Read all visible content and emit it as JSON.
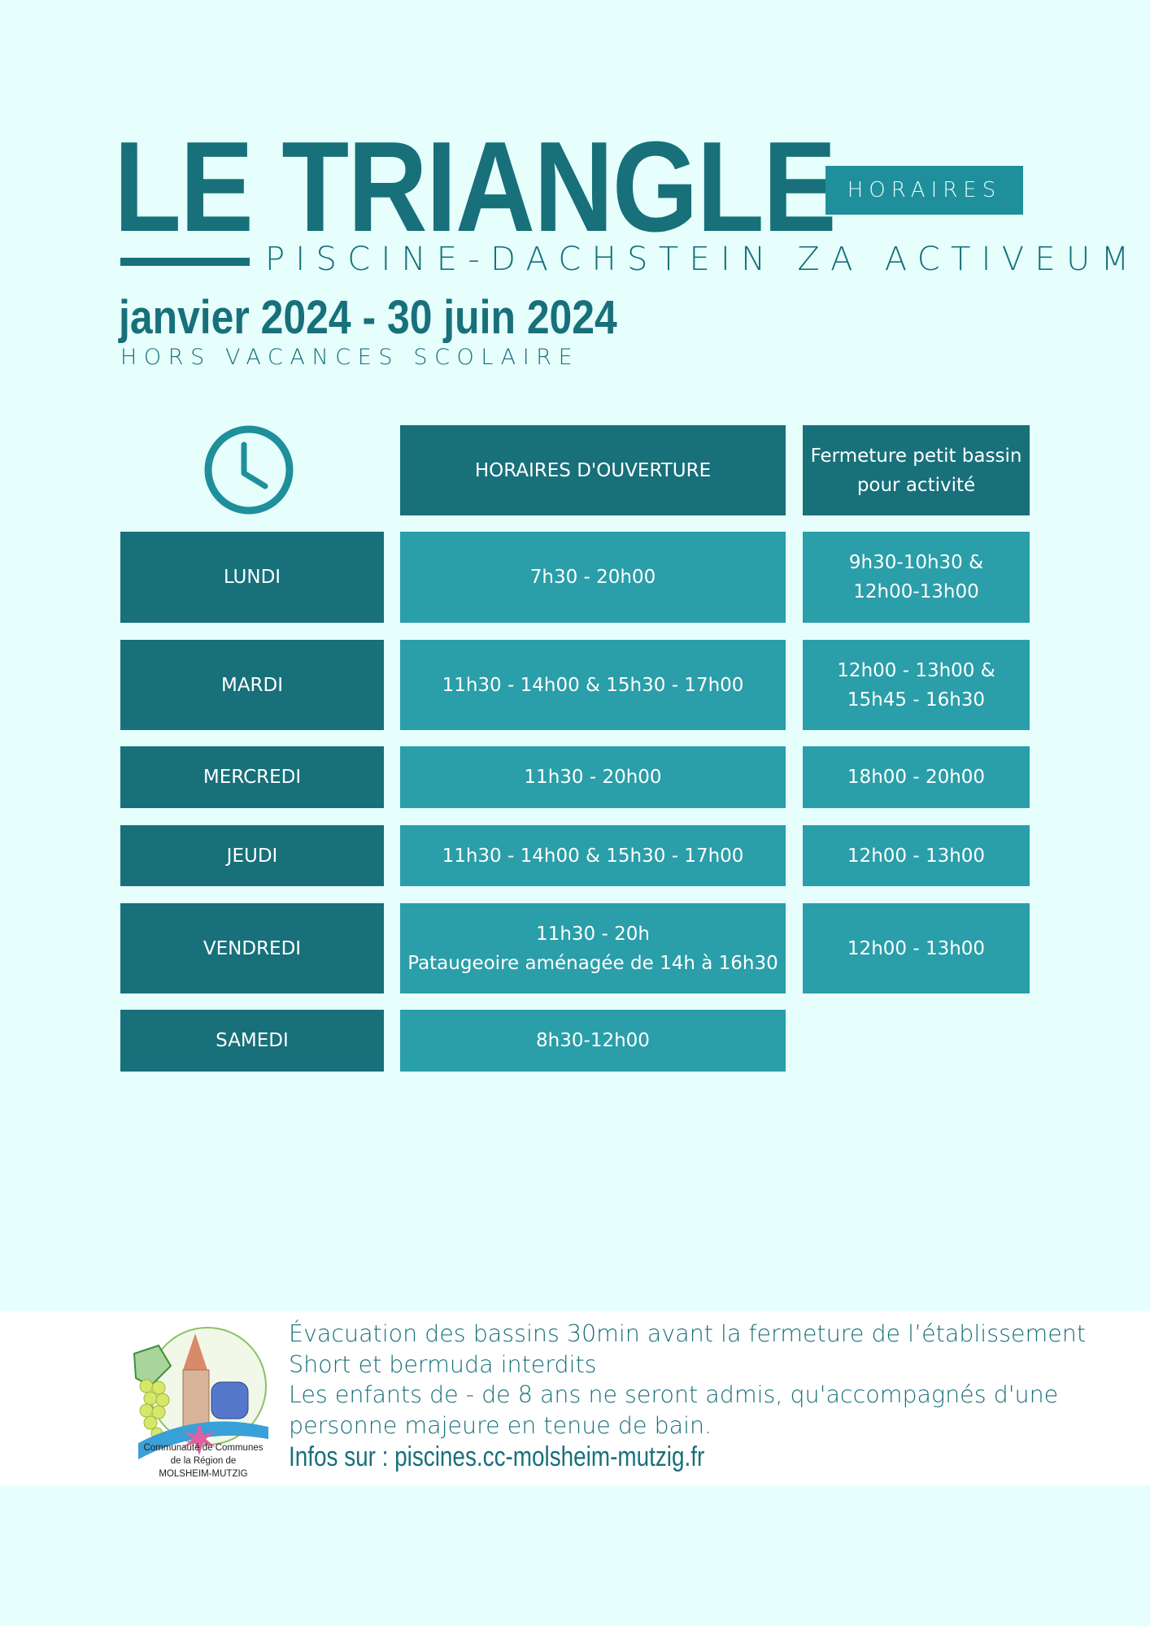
{
  "header": {
    "title": "LE TRIANGLE",
    "badge": "HORAIRES",
    "subtitle": "PISCINE-DACHSTEIN ZA ACTIVEUM",
    "period": "janvier 2024 - 30 juin 2024",
    "period_note": "HORS VACANCES SCOLAIRE"
  },
  "table": {
    "icon": "clock-icon",
    "columns": [
      "HORAIRES D'OUVERTURE",
      "Fermeture petit bassin\npour activité"
    ],
    "rows": [
      {
        "day": "LUNDI",
        "hours": "7h30 - 20h00",
        "closure": "9h30-10h30 &\n12h00-13h00"
      },
      {
        "day": "MARDI",
        "hours": "11h30 - 14h00 & 15h30 - 17h00",
        "closure": "12h00 - 13h00 &\n15h45 - 16h30"
      },
      {
        "day": "MERCREDI",
        "hours": "11h30 - 20h00",
        "closure": "18h00 - 20h00"
      },
      {
        "day": "JEUDI",
        "hours": "11h30 - 14h00 & 15h30 - 17h00",
        "closure": "12h00 - 13h00"
      },
      {
        "day": "VENDREDI",
        "hours": "11h30 - 20h\nPataugeoire aménagée de 14h à 16h30",
        "closure": "12h00 - 13h00"
      },
      {
        "day": "SAMEDI",
        "hours": "8h30-12h00"
      }
    ]
  },
  "footer": {
    "logo_text": [
      "Communauté de Communes",
      "de la Région de",
      "MOLSHEIM-MUTZIG"
    ],
    "notes": [
      "Évacuation des bassins 30min avant la fermeture de l’établissement",
      "Short et bermuda interdits",
      "Les enfants de - de 8 ans ne seront admis, qu'accompagnés d'une",
      "personne majeure en tenue de bain."
    ],
    "infos": "Infos sur : piscines.cc-molsheim-mutzig.fr"
  },
  "colors": {
    "background": "#e6fffd",
    "dark": "#17707a",
    "light": "#2a9ea9",
    "badge": "#1e8f9b"
  }
}
